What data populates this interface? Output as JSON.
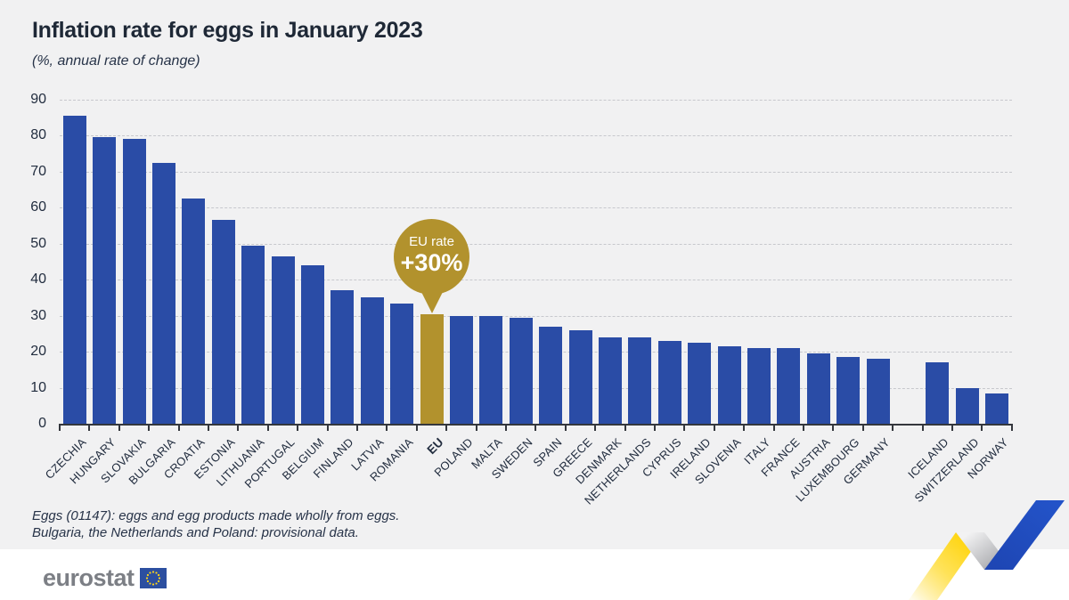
{
  "header": {
    "title": "Inflation rate for eggs in January 2023",
    "subtitle": "(%, annual rate of change)"
  },
  "chart_data": {
    "type": "bar",
    "title": "Inflation rate for eggs in January 2023",
    "subtitle": "(%, annual rate of change)",
    "unit": "%, annual rate of change",
    "ylim": [
      0,
      90
    ],
    "yticks": [
      0,
      10,
      20,
      30,
      40,
      50,
      60,
      70,
      80,
      90
    ],
    "grid": "horizontal-dashed",
    "legend": "none",
    "categories": [
      "CZECHIA",
      "HUNGARY",
      "SLOVAKIA",
      "BULGARIA",
      "CROATIA",
      "ESTONIA",
      "LITHUANIA",
      "PORTUGAL",
      "BELGIUM",
      "FINLAND",
      "LATVIA",
      "ROMANIA",
      "EU",
      "POLAND",
      "MALTA",
      "SWEDEN",
      "SPAIN",
      "GREECE",
      "DENMARK",
      "NETHERLANDS",
      "CYPRUS",
      "IRELAND",
      "SLOVENIA",
      "ITALY",
      "FRANCE",
      "AUSTRIA",
      "LUXEMBOURG",
      "GERMANY",
      "",
      "ICELAND",
      "SWITZERLAND",
      "NORWAY"
    ],
    "values": [
      85.5,
      79.5,
      79,
      72.5,
      62.5,
      56.5,
      49.5,
      46.5,
      44,
      37,
      35,
      33.5,
      30.3,
      30,
      30,
      29.5,
      27,
      26,
      24,
      24,
      23,
      22.5,
      21.5,
      21,
      21,
      19.5,
      18.5,
      18,
      null,
      17,
      10,
      8.5
    ],
    "highlight_category": "EU",
    "separator_note": "empty slot between GERMANY and ICELAND separates EU members from EFTA countries",
    "bar_color": "#2a4ca6",
    "highlight_color": "#b2922d"
  },
  "callout": {
    "line1": "EU rate",
    "line2": "+30%",
    "color": "#b2922d"
  },
  "footnotes": {
    "line1": "Eggs (01147): eggs and egg products made wholly from eggs.",
    "line2": "Bulgaria, the Netherlands and Poland: provisional data."
  },
  "logo": {
    "text": "eurostat"
  },
  "colors": {
    "background": "#f1f1f2",
    "bar_blue": "#2a4ca6",
    "gold": "#b2922d",
    "text_navy": "#1f2a3a",
    "gridline": "#c7c8cd",
    "ribbon_yellow": "#ffd617",
    "ribbon_blue": "#2353c8",
    "flag_blue": "#2c4fa0",
    "logo_gray": "#7c7f85"
  }
}
